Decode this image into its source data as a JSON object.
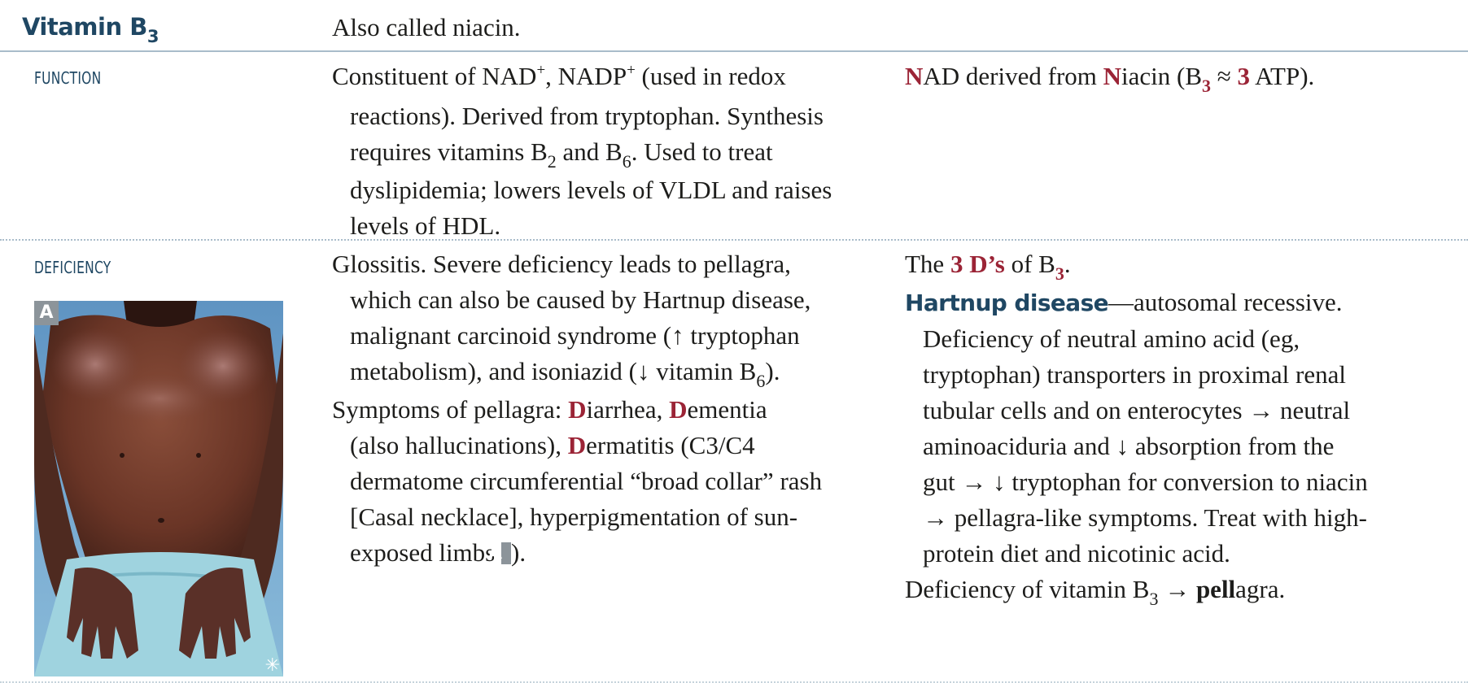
{
  "header": {
    "title_main": "Vitamin B",
    "title_sub": "3",
    "intro": "Also called niacin."
  },
  "function": {
    "label": "FUNCTION",
    "text": {
      "l1a": "Constituent of NAD",
      "l1b": "+",
      "l1c": ", NADP",
      "l1d": "+",
      "l1e": " (used in redox",
      "l2": "reactions). Derived from tryptophan. Synthesis",
      "l3a": "requires vitamins B",
      "l3b": "2",
      "l3c": " and B",
      "l3d": "6",
      "l3e": ". Used to treat",
      "l4": "dyslipidemia; lowers levels of VLDL and raises",
      "l5": "levels of HDL."
    },
    "mnemonic": {
      "a": "N",
      "b": "AD derived from ",
      "c": "N",
      "d": "iacin (B",
      "e": "3",
      "f": " ≈ ",
      "g": "3",
      "h": " ATP)."
    }
  },
  "deficiency": {
    "label": "DEFICIENCY",
    "text": {
      "p1l1": "Glossitis. Severe deficiency leads to pellagra,",
      "p1l2": "which can also be caused by Hartnup disease,",
      "p1l3": "malignant carcinoid syndrome (↑ tryptophan",
      "p1l4a": "metabolism), and isoniazid (↓ vitamin B",
      "p1l4b": "6",
      "p1l4c": ").",
      "p2l1a": "Symptoms of pellagra: ",
      "p2l1b": "D",
      "p2l1c": "iarrhea, ",
      "p2l1d": "D",
      "p2l1e": "ementia",
      "p2l2a": "(also hallucinations), ",
      "p2l2b": "D",
      "p2l2c": "ermatitis (C3/C4",
      "p2l3": "dermatome circumferential “broad collar” rash",
      "p2l4": "[Casal necklace], hyperpigmentation of sun-",
      "p2l5a": "exposed limbs ",
      "p2l5b": "A",
      "p2l5c": ")."
    },
    "mnemonic": {
      "l1a": "The ",
      "l1b": "3 D’s",
      "l1c": " of B",
      "l1d": "3",
      "l1e": ".",
      "hart_title": "Hartnup disease",
      "hart_l1": "—autosomal recessive.",
      "hart_l2": "Deficiency of neutral amino acid (eg,",
      "hart_l3": "tryptophan) transporters in proximal renal",
      "hart_l4": "tubular cells and on enterocytes → neutral",
      "hart_l5": "aminoaciduria and ↓ absorption from the",
      "hart_l6": "gut → ↓ tryptophan for conversion to niacin",
      "hart_l7": "→ pellagra-like symptoms. Treat with high-",
      "hart_l8": "protein diet and nicotinic acid.",
      "last_a": "Deficiency of vitamin B",
      "last_b": "3",
      "last_c": " → ",
      "last_d": "pell",
      "last_e": "agra."
    },
    "photo": {
      "tag": "A",
      "corner_mark": "✳"
    }
  },
  "colors": {
    "heading_blue": "#1f4763",
    "mnemonic_red": "#9b2436",
    "rule": "#a9bcca"
  }
}
